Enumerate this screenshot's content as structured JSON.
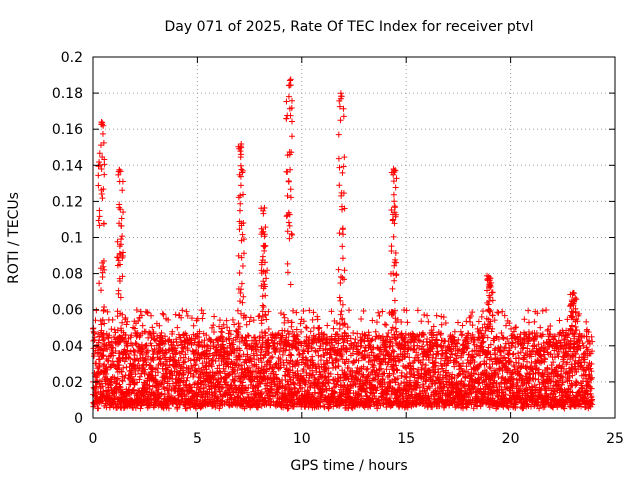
{
  "chart_data": {
    "type": "scatter",
    "title": "Day 071 of 2025, Rate Of TEC Index for receiver ptvl",
    "xlabel": "GPS time / hours",
    "ylabel": "ROTI / TECUs",
    "xlim": [
      0,
      25
    ],
    "ylim": [
      0,
      0.2
    ],
    "x_ticks": [
      0,
      5,
      10,
      15,
      20,
      25
    ],
    "x_tick_labels": [
      "0",
      "5",
      "10",
      "15",
      "20",
      "25"
    ],
    "y_ticks": [
      0,
      0.02,
      0.04,
      0.06,
      0.08,
      0.1,
      0.12,
      0.14,
      0.16,
      0.18,
      0.2
    ],
    "y_tick_labels": [
      "0",
      "0.02",
      "0.04",
      "0.06",
      "0.08",
      "0.1",
      "0.12",
      "0.14",
      "0.16",
      "0.18",
      "0.2"
    ],
    "grid": true,
    "marker": "+",
    "marker_color": "#ff0000",
    "data_x_range": [
      0,
      23.9
    ],
    "baseline_band": [
      0.005,
      0.045
    ],
    "spikes": [
      {
        "x": 0.4,
        "y": 0.165
      },
      {
        "x": 1.3,
        "y": 0.138
      },
      {
        "x": 7.1,
        "y": 0.153
      },
      {
        "x": 8.2,
        "y": 0.117
      },
      {
        "x": 9.4,
        "y": 0.188
      },
      {
        "x": 11.9,
        "y": 0.18
      },
      {
        "x": 14.4,
        "y": 0.138
      },
      {
        "x": 19.0,
        "y": 0.08
      },
      {
        "x": 23.0,
        "y": 0.07
      }
    ]
  }
}
